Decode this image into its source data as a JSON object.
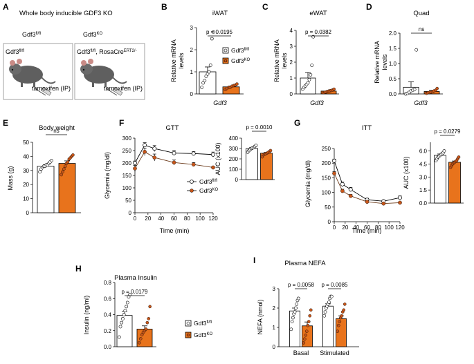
{
  "figure": {
    "colors": {
      "ko": "#e8731c",
      "ko_dot": "#c7561a",
      "ctrl": "#ffffff",
      "line": "#000000"
    },
    "panel_a": {
      "letter": "A",
      "title": "Whole body inducible GDF3 KO",
      "box_ctrl": {
        "header_base": "Gdf3",
        "header_sup": "fl/fl",
        "mouse_base": "Gdf3",
        "mouse_sup": "fl/fl",
        "treatment": "tamoxifen (IP)"
      },
      "box_ko": {
        "header_base": "Gdf3",
        "header_sup": "KO",
        "mouse_base": "Gdf3",
        "mouse_sup": "fl/fl",
        "mouse_extra": ", RosaCre",
        "mouse_extra_sup": "ERT2/-",
        "treatment": "tamoxifen (IP)"
      }
    },
    "legend": {
      "ctrl_base": "Gdf3",
      "ctrl_sup": "fl/fl",
      "ko_base": "Gdf3",
      "ko_sup": "KO"
    }
  },
  "chart_data": [
    {
      "panel": "B",
      "type": "bar",
      "title": "iWAT",
      "ylabel": "Relative mRNA levels",
      "xlabel": "Gdf3",
      "ylim": [
        0,
        3
      ],
      "yticks": [
        0,
        1,
        2,
        3
      ],
      "categories": [
        "Gdf3fl/fl",
        "Gdf3KO"
      ],
      "series": [
        {
          "name": "Gdf3fl/fl",
          "mean": 1.0,
          "sem": 0.22,
          "points": [
            0.3,
            0.5,
            0.6,
            0.8,
            0.9,
            1.0,
            1.3,
            2.5,
            2.8
          ]
        },
        {
          "name": "Gdf3KO",
          "mean": 0.32,
          "sem": 0.04,
          "points": [
            0.2,
            0.25,
            0.3,
            0.3,
            0.35,
            0.38,
            0.4,
            0.45
          ]
        }
      ],
      "annotation": "p = 0.0195"
    },
    {
      "panel": "C",
      "type": "bar",
      "title": "eWAT",
      "ylabel": "Relative mRNA levels",
      "xlabel": "Gdf3",
      "ylim": [
        0,
        4
      ],
      "yticks": [
        0,
        1,
        2,
        3,
        4
      ],
      "categories": [
        "Gdf3fl/fl",
        "Gdf3KO"
      ],
      "series": [
        {
          "name": "Gdf3fl/fl",
          "mean": 1.0,
          "sem": 0.35,
          "points": [
            0.3,
            0.4,
            0.5,
            0.6,
            0.7,
            0.9,
            1.2,
            1.8,
            3.6
          ]
        },
        {
          "name": "Gdf3KO",
          "mean": 0.18,
          "sem": 0.03,
          "points": [
            0.08,
            0.1,
            0.12,
            0.15,
            0.18,
            0.2,
            0.22,
            0.25,
            0.3
          ]
        }
      ],
      "annotation": "p = 0.0382"
    },
    {
      "panel": "D",
      "type": "bar",
      "title": "Quad",
      "ylabel": "Relative mRNA levels",
      "xlabel": "Gdf3",
      "ylim": [
        0,
        2
      ],
      "yticks": [
        0.0,
        0.5,
        1.0,
        1.5,
        2.0
      ],
      "categories": [
        "Gdf3fl/fl",
        "Gdf3KO"
      ],
      "series": [
        {
          "name": "Gdf3fl/fl",
          "mean": 0.22,
          "sem": 0.18,
          "points": [
            0.0,
            0.02,
            0.05,
            0.1,
            0.12,
            0.15,
            1.45
          ]
        },
        {
          "name": "Gdf3KO",
          "mean": 0.08,
          "sem": 0.04,
          "points": [
            0.02,
            0.04,
            0.05,
            0.06,
            0.08,
            0.1,
            0.12,
            0.18
          ]
        }
      ],
      "annotation": "ns"
    },
    {
      "panel": "E",
      "type": "bar",
      "title": "Body weight",
      "ylabel": "Mass (g)",
      "xlabel": "",
      "ylim": [
        0,
        50
      ],
      "yticks": [
        0,
        10,
        20,
        30,
        40,
        50
      ],
      "categories": [
        "Gdf3fl/fl",
        "Gdf3KO"
      ],
      "series": [
        {
          "name": "Gdf3fl/fl",
          "mean": 33,
          "sem": 1.0,
          "points": [
            29,
            31,
            32,
            33,
            33,
            34,
            34,
            35,
            36,
            37
          ]
        },
        {
          "name": "Gdf3KO",
          "mean": 35,
          "sem": 1.8,
          "points": [
            27,
            29,
            31,
            33,
            35,
            36,
            38,
            39,
            40,
            41
          ]
        }
      ],
      "annotation": "ns"
    },
    {
      "panel": "F",
      "type": "line",
      "title": "GTT",
      "xlabel": "Time (min)",
      "ylabel": "Glycemia (mg/dl)",
      "x": [
        0,
        15,
        30,
        60,
        90,
        120
      ],
      "xlim": [
        0,
        120
      ],
      "xticks": [
        0,
        20,
        40,
        60,
        80,
        100,
        120
      ],
      "ylim": [
        0,
        300
      ],
      "yticks": [
        0,
        50,
        100,
        150,
        200,
        250,
        300
      ],
      "series": [
        {
          "name": "Gdf3fl/fl",
          "values": [
            200,
            272,
            258,
            240,
            238,
            234
          ],
          "sem": [
            8,
            10,
            12,
            10,
            8,
            10
          ]
        },
        {
          "name": "Gdf3KO",
          "values": [
            178,
            245,
            222,
            202,
            194,
            182
          ],
          "sem": [
            12,
            15,
            14,
            10,
            8,
            4
          ]
        }
      ]
    },
    {
      "panel": "F2",
      "type": "bar",
      "title": "",
      "ylabel": "AUC (x100)",
      "xlabel": "",
      "ylim": [
        0,
        400
      ],
      "yticks": [
        0,
        100,
        200,
        300,
        400
      ],
      "categories": [
        "Gdf3fl/fl",
        "Gdf3KO"
      ],
      "series": [
        {
          "name": "Gdf3fl/fl",
          "mean": 300,
          "sem": 8,
          "points": [
            265,
            280,
            290,
            300,
            305,
            310,
            320,
            330
          ]
        },
        {
          "name": "Gdf3KO",
          "mean": 255,
          "sem": 7,
          "points": [
            220,
            240,
            245,
            250,
            255,
            262,
            270,
            280
          ]
        }
      ],
      "annotation": "p = 0.0010"
    },
    {
      "panel": "G",
      "type": "line",
      "title": "ITT",
      "xlabel": "Time (min)",
      "ylabel": "Glycemia (mg/dl)",
      "x": [
        0,
        15,
        30,
        60,
        90,
        120
      ],
      "xlim": [
        0,
        120
      ],
      "xticks": [
        0,
        20,
        40,
        60,
        80,
        100,
        120
      ],
      "ylim": [
        0,
        250
      ],
      "yticks": [
        0,
        50,
        100,
        150,
        200,
        250
      ],
      "series": [
        {
          "name": "Gdf3fl/fl",
          "values": [
            208,
            128,
            110,
            75,
            70,
            82
          ],
          "sem": [
            6,
            8,
            7,
            5,
            4,
            6
          ]
        },
        {
          "name": "Gdf3KO",
          "values": [
            165,
            105,
            88,
            68,
            62,
            65
          ],
          "sem": [
            6,
            6,
            5,
            4,
            3,
            3
          ]
        }
      ]
    },
    {
      "panel": "G2",
      "type": "bar",
      "title": "",
      "ylabel": "AUC (x100)",
      "xlabel": "",
      "ylim": [
        0,
        7
      ],
      "yticks": [
        0.0,
        1.5,
        3.0,
        4.5,
        6.0
      ],
      "categories": [
        "Gdf3fl/fl",
        "Gdf3KO"
      ],
      "series": [
        {
          "name": "Gdf3fl/fl",
          "mean": 5.5,
          "sem": 0.15,
          "points": [
            4.9,
            5.1,
            5.3,
            5.4,
            5.5,
            5.6,
            5.7,
            5.8,
            6.0
          ]
        },
        {
          "name": "Gdf3KO",
          "mean": 4.7,
          "sem": 0.14,
          "points": [
            4.1,
            4.3,
            4.5,
            4.6,
            4.7,
            4.8,
            4.9,
            5.1,
            5.3
          ]
        }
      ],
      "annotation": "p = 0.0279"
    },
    {
      "panel": "H",
      "type": "bar",
      "title": "Plasma Insulin",
      "ylabel": "Insulin (ng/ml)",
      "xlabel": "",
      "ylim": [
        0,
        0.8
      ],
      "yticks": [
        0.0,
        0.2,
        0.4,
        0.6,
        0.8
      ],
      "categories": [
        "Gdf3fl/fl",
        "Gdf3KO"
      ],
      "series": [
        {
          "name": "Gdf3fl/fl",
          "mean": 0.39,
          "sem": 0.05,
          "points": [
            0.12,
            0.25,
            0.3,
            0.35,
            0.4,
            0.45,
            0.5,
            0.55,
            0.62,
            0.65
          ]
        },
        {
          "name": "Gdf3KO",
          "mean": 0.22,
          "sem": 0.04,
          "points": [
            0.05,
            0.1,
            0.15,
            0.18,
            0.2,
            0.22,
            0.3,
            0.35,
            0.5
          ]
        }
      ],
      "annotation": "p = 0.0179"
    },
    {
      "panel": "I",
      "type": "bar",
      "title": "Plasma NEFA",
      "ylabel": "NEFA (nmol)",
      "xlabel": "",
      "ylim": [
        0,
        3
      ],
      "yticks": [
        0,
        1,
        2,
        3
      ],
      "categories": [
        "Basal",
        "Stimulated"
      ],
      "series": [
        {
          "name": "Gdf3fl/fl",
          "values": [
            1.85,
            2.1
          ],
          "sem": [
            0.15,
            0.12
          ],
          "points": [
            [
              0.9,
              1.3,
              1.5,
              1.7,
              1.8,
              2.0,
              2.2,
              2.4,
              2.5
            ],
            [
              1.6,
              1.8,
              2.0,
              2.1,
              2.2,
              2.3,
              2.5,
              2.6,
              2.6
            ]
          ]
        },
        {
          "name": "Gdf3KO",
          "values": [
            1.08,
            1.45
          ],
          "sem": [
            0.2,
            0.15
          ],
          "points": [
            [
              0.2,
              0.4,
              0.6,
              0.8,
              1.1,
              1.3,
              1.6,
              1.9
            ],
            [
              0.8,
              1.1,
              1.3,
              1.5,
              1.6,
              1.8,
              1.9,
              2.2
            ]
          ]
        }
      ],
      "annotations": [
        "p = 0.0058",
        "p = 0.0085"
      ]
    }
  ]
}
